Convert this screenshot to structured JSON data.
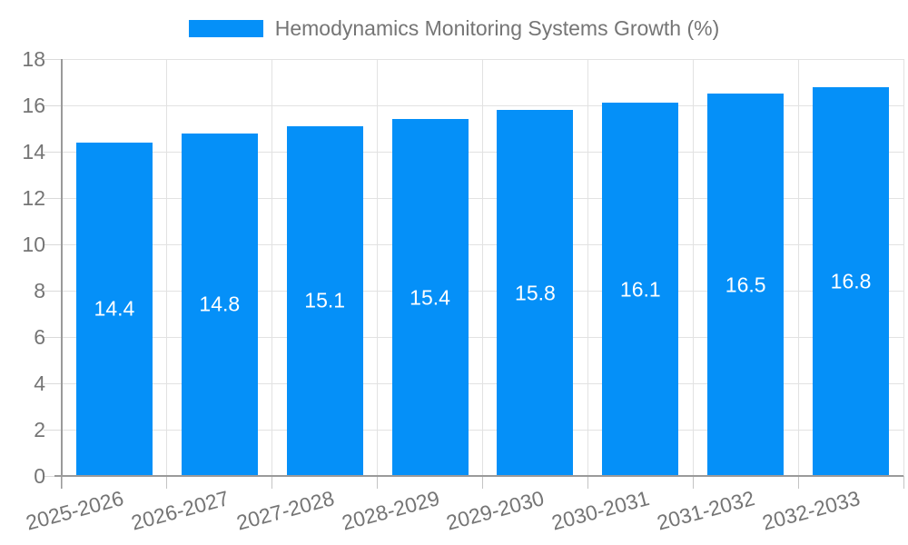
{
  "chart_data": {
    "type": "bar",
    "title": "Hemodynamics Monitoring Systems Growth (%)",
    "legend": {
      "label": "Hemodynamics Monitoring Systems Growth (%)",
      "position": "top-center"
    },
    "categories": [
      "2025-2026",
      "2026-2027",
      "2027-2028",
      "2028-2029",
      "2029-2030",
      "2030-2031",
      "2031-2032",
      "2032-2033"
    ],
    "series": [
      {
        "name": "Hemodynamics Monitoring Systems Growth (%)",
        "values": [
          14.4,
          14.8,
          15.1,
          15.4,
          15.8,
          16.1,
          16.5,
          16.8
        ]
      }
    ],
    "value_label_decimals": 1,
    "xlabel": "",
    "ylabel": "",
    "ylim": [
      0,
      18
    ],
    "yticks": [
      0,
      2,
      4,
      6,
      8,
      10,
      12,
      14,
      16,
      18
    ],
    "grid": true,
    "x_tick_label_rotation_deg": -15,
    "colors": {
      "bar": "#0590f8",
      "bar_value_label": "#ffffff",
      "axis_text": "#757575",
      "grid_line": "#e2e2e2",
      "axis_line": "#9a9a9a",
      "y_tick_mark": "#dadada",
      "x_tick_mark": "#c4c4c4",
      "background": "#ffffff"
    }
  }
}
